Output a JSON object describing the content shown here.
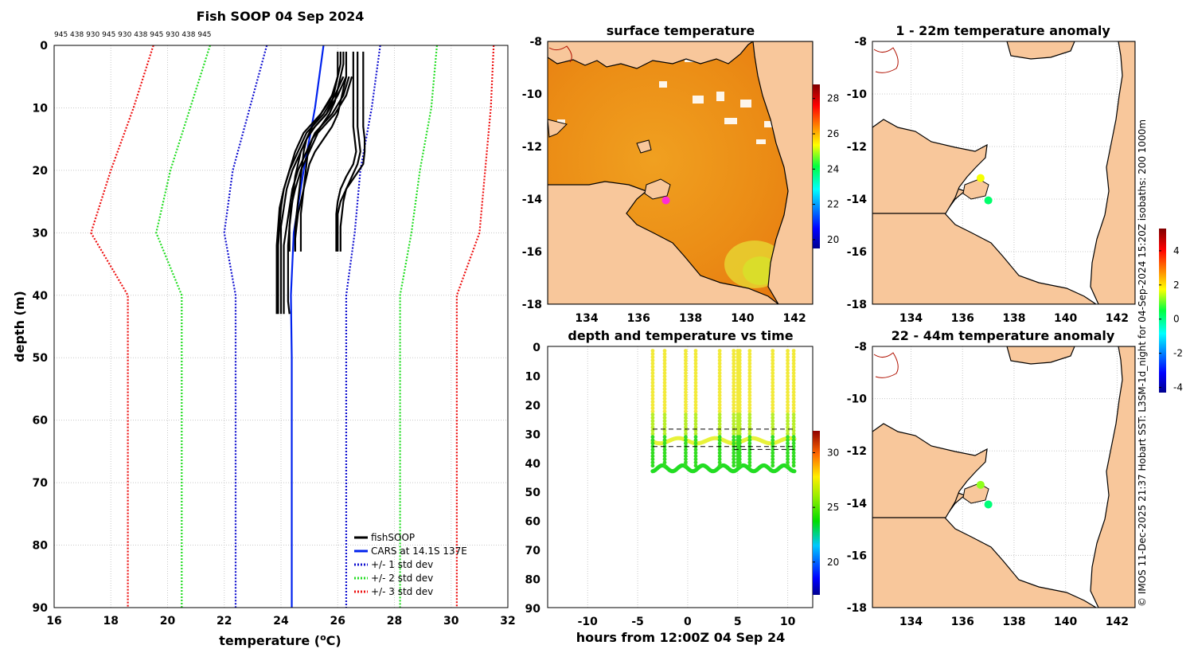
{
  "credit": "© IMOS 11-Dec-2025 21:37 Hobart SST: L3SM-1d_night for 04-Sep-2024 15:20Z isobaths: 200  1000m",
  "colors": {
    "land": "#f8c79b",
    "fishsoop": "#000000",
    "cars": "#0022ee",
    "std1": "#1010d0",
    "std2": "#22dd22",
    "std3": "#ee1111"
  },
  "chart_data": [
    {
      "type": "line",
      "title": "Fish SOOP 04 Sep 2024",
      "subtitle": "945 438 930 945 930 438 945 930 438 945",
      "xlabel": "temperature (",
      "xlabel_sup": "o",
      "xlabel_tail": "C)",
      "ylabel": "depth (m)",
      "xlim": [
        16,
        32
      ],
      "ylim": [
        0,
        90
      ],
      "xticks": [
        "16",
        "18",
        "20",
        "22",
        "24",
        "26",
        "28",
        "30",
        "32"
      ],
      "yticks": [
        "0",
        "10",
        "20",
        "30",
        "40",
        "50",
        "60",
        "70",
        "80",
        "90"
      ],
      "series": [
        {
          "name": "CARS",
          "depth": [
            0,
            10,
            20,
            30,
            40,
            50,
            90
          ],
          "temp": [
            25.5,
            25.2,
            24.8,
            24.45,
            24.35,
            24.38,
            24.38
          ]
        },
        {
          "name": "std-1",
          "depth": [
            0,
            10,
            20,
            30,
            40,
            90
          ],
          "left": [
            23.5,
            22.9,
            22.3,
            22.0,
            22.4,
            22.4
          ],
          "right": [
            27.5,
            27.2,
            26.8,
            26.6,
            26.3,
            26.3
          ]
        },
        {
          "name": "std-2",
          "depth": [
            0,
            10,
            20,
            30,
            40,
            90
          ],
          "left": [
            21.5,
            20.8,
            20.1,
            19.6,
            20.5,
            20.5
          ],
          "right": [
            29.5,
            29.3,
            28.9,
            28.6,
            28.2,
            28.2
          ]
        },
        {
          "name": "std-3",
          "depth": [
            0,
            10,
            20,
            30,
            40,
            90
          ],
          "left": [
            19.5,
            18.8,
            18.0,
            17.3,
            18.6,
            18.6
          ],
          "right": [
            31.5,
            31.4,
            31.2,
            31.0,
            30.2,
            30.2
          ]
        }
      ],
      "profiles": {
        "shallow_depth": [
          1,
          3,
          5,
          7,
          9,
          11,
          13,
          15,
          17,
          19,
          21,
          23,
          25,
          27,
          29,
          31,
          33
        ],
        "shallow": [
          [
            26.2,
            26.2,
            26.1,
            26.0,
            25.9,
            25.7,
            25.4,
            25.1,
            24.95,
            24.9,
            24.85,
            24.8,
            24.75,
            24.7,
            24.7,
            24.7,
            24.7
          ],
          [
            26.3,
            26.3,
            26.3,
            26.2,
            26.1,
            26.0,
            25.8,
            25.5,
            25.2,
            25.0,
            24.9,
            24.8,
            24.7,
            24.6,
            24.55,
            24.5,
            24.5
          ],
          [
            26.1,
            26.1,
            26.0,
            25.9,
            25.7,
            25.4,
            25.1,
            24.9,
            24.8,
            24.75,
            24.7,
            24.65,
            24.6,
            24.55,
            24.5,
            24.5,
            24.5
          ],
          [
            26.0,
            26.0,
            26.0,
            25.9,
            25.8,
            25.6,
            25.2,
            24.9,
            24.7,
            24.6,
            24.5,
            24.45,
            24.4,
            24.35,
            24.3,
            24.3,
            24.3
          ]
        ],
        "warm_depth": [
          1,
          3,
          5,
          7,
          9,
          11,
          13,
          15,
          17,
          19,
          21,
          23,
          25,
          27,
          29,
          31,
          33
        ],
        "warm": [
          [
            26.9,
            26.9,
            26.9,
            26.9,
            26.9,
            26.9,
            26.9,
            26.95,
            26.95,
            26.9,
            26.6,
            26.3,
            26.2,
            26.15,
            26.1,
            26.1,
            26.1
          ],
          [
            26.7,
            26.7,
            26.7,
            26.7,
            26.7,
            26.7,
            26.7,
            26.75,
            26.8,
            26.7,
            26.5,
            26.3,
            26.1,
            26.0,
            26.0,
            26.0,
            26.0
          ],
          [
            26.55,
            26.55,
            26.55,
            26.55,
            26.55,
            26.55,
            26.55,
            26.6,
            26.65,
            26.55,
            26.3,
            26.1,
            26.0,
            25.95,
            25.95,
            25.95,
            25.95
          ]
        ],
        "deep_depth": [
          5,
          8,
          11,
          14,
          17,
          20,
          23,
          26,
          29,
          32,
          35,
          38,
          41,
          43
        ],
        "deep": [
          [
            26.3,
            26.0,
            25.6,
            25.0,
            24.7,
            24.4,
            24.2,
            24.1,
            24.0,
            24.0,
            24.0,
            24.0,
            24.0,
            24.0
          ],
          [
            26.4,
            26.2,
            25.8,
            25.2,
            24.9,
            24.6,
            24.4,
            24.3,
            24.2,
            24.1,
            24.1,
            24.1,
            24.1,
            24.1
          ],
          [
            26.2,
            25.9,
            25.5,
            24.9,
            24.6,
            24.3,
            24.1,
            23.95,
            23.9,
            23.85,
            23.85,
            23.85,
            23.85,
            23.85
          ],
          [
            26.5,
            26.3,
            25.9,
            25.3,
            25.0,
            24.7,
            24.5,
            24.35,
            24.3,
            24.25,
            24.25,
            24.25,
            24.25,
            24.3
          ],
          [
            26.0,
            25.8,
            25.4,
            24.8,
            24.5,
            24.3,
            24.1,
            24.0,
            23.95,
            23.9,
            23.9,
            23.9,
            23.9,
            23.9
          ]
        ]
      },
      "legend": [
        "fishSOOP",
        "CARS at 14.1S 137E",
        "+/- 1 std dev",
        "+/- 2 std dev",
        "+/- 3 std dev"
      ],
      "legend_position": "bottom-right"
    },
    {
      "type": "heatmap",
      "title": "surface temperature",
      "xlim": [
        132.5,
        142.7
      ],
      "ylim": [
        -18,
        -8
      ],
      "xticks": [
        "134",
        "136",
        "138",
        "140",
        "142"
      ],
      "yticks": [
        "-8",
        "-10",
        "-12",
        "-14",
        "-16",
        "-18"
      ],
      "colorbar": {
        "min": 19.5,
        "max": 28.8,
        "ticks": [
          "20",
          "22",
          "24",
          "26",
          "28"
        ]
      },
      "marker": {
        "lon": 137.05,
        "lat": -14.05
      }
    },
    {
      "type": "scatter",
      "title": "depth and temperature vs time",
      "xlabel": "hours from 12:00Z 04 Sep 24",
      "xlim": [
        -14,
        12.5
      ],
      "ylim": [
        0,
        90
      ],
      "xticks": [
        "-10",
        "-5",
        "0",
        "5",
        "10"
      ],
      "yticks": [
        "0",
        "10",
        "20",
        "30",
        "40",
        "50",
        "60",
        "70",
        "80",
        "90"
      ],
      "colorbar": {
        "min": 17,
        "max": 32,
        "ticks": [
          "20",
          "25",
          "30"
        ]
      },
      "bottom_segments": [
        [
          -3.5,
          -0.7
        ],
        [
          -0.7,
          4.5
        ],
        [
          4.5,
          6.1
        ],
        [
          6.1,
          10.7
        ]
      ],
      "dives": [
        -3.5,
        -2.3,
        -0.2,
        0.8,
        3.2,
        4.6,
        5.0,
        5.2,
        6.2,
        8.5,
        10.0,
        10.6
      ],
      "isobath_lines": [
        {
          "depth": 28.5,
          "x0": -3.5,
          "x1": 10.7
        },
        {
          "depth": 34.5,
          "x0": -3.5,
          "x1": 10.7
        },
        {
          "depth": 35.5,
          "x0": 4.6,
          "x1": 10.7
        }
      ]
    },
    {
      "type": "scatter",
      "title": "1 - 22m temperature anomaly",
      "xlim": [
        132.5,
        142.7
      ],
      "ylim": [
        -18,
        -8
      ],
      "xticks": [
        "134",
        "136",
        "138",
        "140",
        "142"
      ],
      "yticks": [
        "-8",
        "-10",
        "-12",
        "-14",
        "-16",
        "-18"
      ],
      "points": [
        {
          "lon": 136.7,
          "lat": -13.2,
          "anomaly": 1.7
        },
        {
          "lon": 137.0,
          "lat": -14.05,
          "anomaly": 0.2
        }
      ]
    },
    {
      "type": "scatter",
      "title": "22 - 44m temperature anomaly",
      "xlim": [
        132.5,
        142.7
      ],
      "ylim": [
        -18,
        -8
      ],
      "xticks": [
        "134",
        "136",
        "138",
        "140",
        "142"
      ],
      "yticks": [
        "-8",
        "-10",
        "-12",
        "-14",
        "-16",
        "-18"
      ],
      "points": [
        {
          "lon": 136.7,
          "lat": -13.3,
          "anomaly": 1.2
        },
        {
          "lon": 137.0,
          "lat": -14.05,
          "anomaly": 0.1
        }
      ],
      "colorbar": {
        "min": -4.3,
        "max": 5.3,
        "ticks": [
          "-4",
          "-2",
          "0",
          "2",
          "4"
        ]
      }
    }
  ]
}
